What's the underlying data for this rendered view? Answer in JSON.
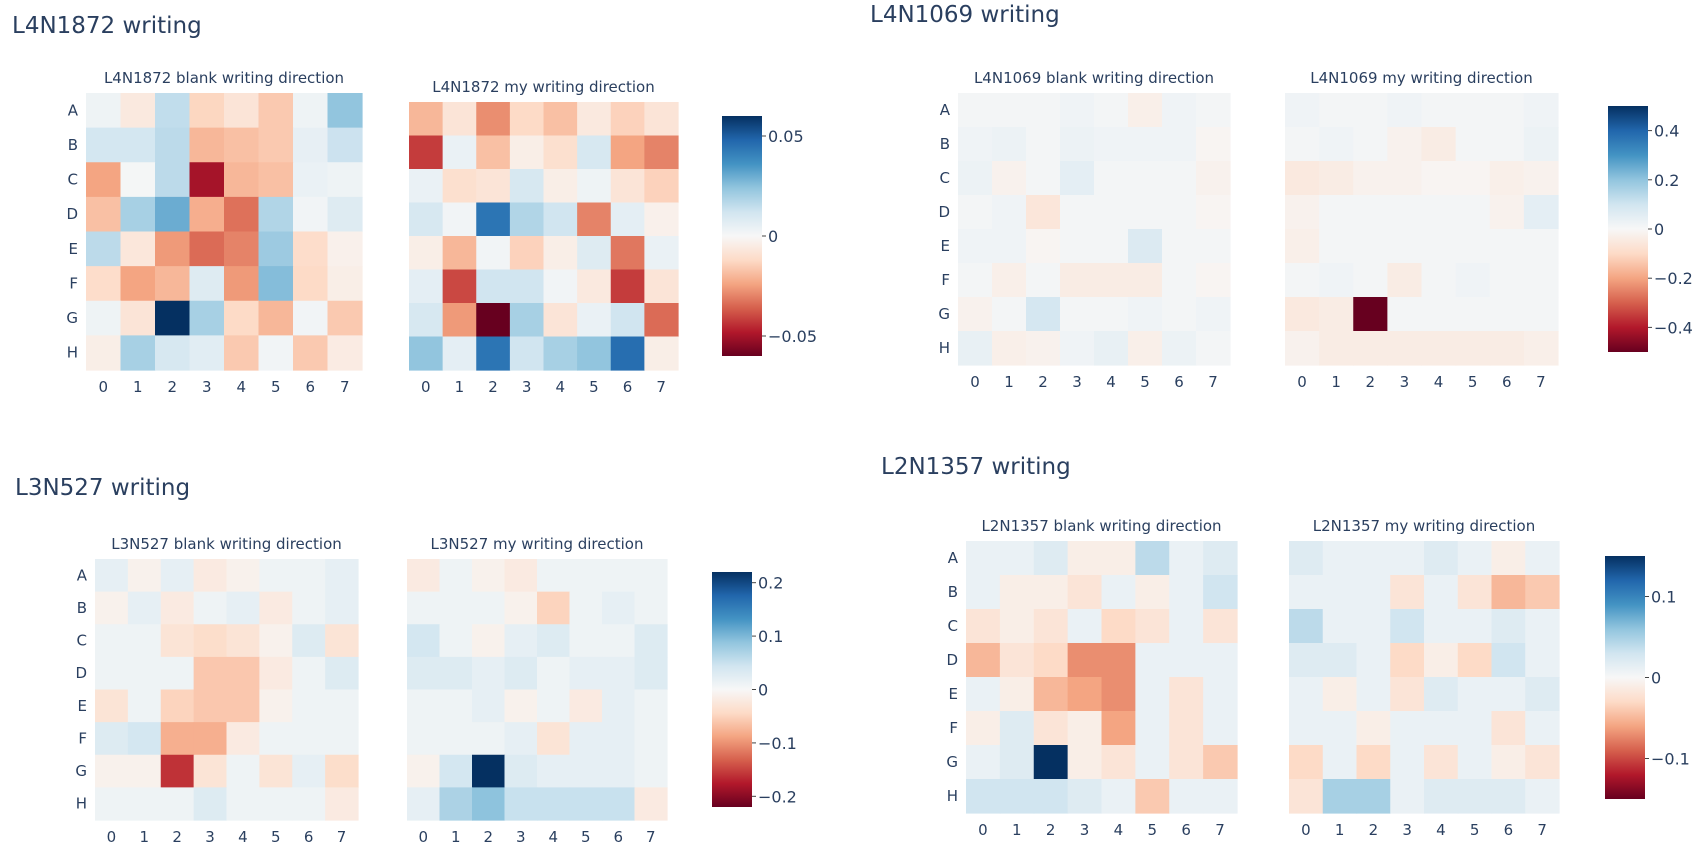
{
  "chart_data": [
    {
      "type": "heatmap",
      "title": "L4N1872 writing",
      "rows": [
        "A",
        "B",
        "C",
        "D",
        "E",
        "F",
        "G",
        "H"
      ],
      "cols": [
        "0",
        "1",
        "2",
        "3",
        "4",
        "5",
        "6",
        "7"
      ],
      "colorbar": {
        "zmin": -0.06,
        "zmax": 0.06,
        "ticks": [
          0.05,
          0,
          -0.05
        ],
        "tick_labels": [
          "0.05",
          "0",
          "−0.05"
        ]
      },
      "panels": [
        {
          "title": "L4N1872 blank writing direction",
          "z": [
            [
              0.003,
              -0.006,
              0.015,
              -0.013,
              -0.008,
              -0.016,
              0.003,
              0.024
            ],
            [
              0.011,
              0.011,
              0.016,
              -0.02,
              -0.018,
              -0.016,
              0.005,
              0.013
            ],
            [
              -0.024,
              0.001,
              0.016,
              -0.05,
              -0.02,
              -0.018,
              0.004,
              0.003
            ],
            [
              -0.018,
              0.02,
              0.03,
              -0.022,
              -0.033,
              0.018,
              0.002,
              0.008
            ],
            [
              0.016,
              -0.007,
              -0.026,
              -0.034,
              -0.03,
              0.022,
              -0.011,
              -0.003
            ],
            [
              -0.011,
              -0.024,
              -0.02,
              0.008,
              -0.026,
              0.026,
              -0.012,
              -0.004
            ],
            [
              0.003,
              -0.008,
              0.06,
              0.02,
              -0.012,
              -0.02,
              0.002,
              -0.016
            ],
            [
              -0.004,
              0.02,
              0.01,
              0.007,
              -0.016,
              0.002,
              -0.016,
              -0.005
            ]
          ]
        },
        {
          "title": "L4N1872 my writing direction",
          "z": [
            [
              -0.02,
              -0.008,
              -0.028,
              -0.012,
              -0.018,
              -0.006,
              -0.014,
              -0.008
            ],
            [
              -0.042,
              0.004,
              -0.018,
              -0.004,
              -0.01,
              0.01,
              -0.024,
              -0.03
            ],
            [
              0.004,
              -0.01,
              -0.008,
              0.01,
              -0.004,
              0.003,
              -0.008,
              -0.014
            ],
            [
              0.01,
              0.002,
              0.044,
              0.018,
              0.012,
              -0.03,
              0.006,
              -0.003
            ],
            [
              -0.004,
              -0.02,
              0.002,
              -0.014,
              -0.004,
              0.008,
              -0.032,
              0.004
            ],
            [
              0.006,
              -0.04,
              0.012,
              0.012,
              0.002,
              -0.006,
              -0.042,
              -0.008
            ],
            [
              0.01,
              -0.026,
              -0.06,
              0.02,
              -0.008,
              0.004,
              0.012,
              -0.034
            ],
            [
              0.024,
              0.006,
              0.044,
              0.012,
              0.02,
              0.024,
              0.046,
              -0.004
            ]
          ]
        }
      ]
    },
    {
      "type": "heatmap",
      "title": "L4N1069 writing",
      "rows": [
        "A",
        "B",
        "C",
        "D",
        "E",
        "F",
        "G",
        "H"
      ],
      "cols": [
        "0",
        "1",
        "2",
        "3",
        "4",
        "5",
        "6",
        "7"
      ],
      "colorbar": {
        "zmin": -0.5,
        "zmax": 0.5,
        "ticks": [
          0.4,
          0.2,
          0,
          -0.2,
          -0.4
        ],
        "tick_labels": [
          "0.4",
          "0.2",
          "0",
          "−0.2",
          "−0.4"
        ]
      },
      "panels": [
        {
          "title": "L4N1069 blank writing direction",
          "z": [
            [
              0.01,
              0.01,
              0.01,
              0.02,
              0.01,
              -0.03,
              0.02,
              0.01
            ],
            [
              0.02,
              0.03,
              0.01,
              0.03,
              0.02,
              0.02,
              0.02,
              -0.01
            ],
            [
              0.03,
              -0.02,
              0.01,
              0.05,
              0.01,
              0.01,
              0.01,
              -0.02
            ],
            [
              0.01,
              0.02,
              -0.06,
              0.01,
              0.01,
              0.01,
              0.01,
              -0.01
            ],
            [
              0.02,
              0.02,
              -0.01,
              0.01,
              0.01,
              0.07,
              0.01,
              0.01
            ],
            [
              0.01,
              -0.03,
              0.01,
              -0.04,
              -0.04,
              -0.04,
              0.01,
              -0.01
            ],
            [
              -0.02,
              0.01,
              0.09,
              0.01,
              0.01,
              0.02,
              0.01,
              0.02
            ],
            [
              0.04,
              -0.03,
              -0.02,
              0.02,
              0.04,
              -0.03,
              0.03,
              0.01
            ]
          ]
        },
        {
          "title": "L4N1069 my writing direction",
          "z": [
            [
              0.02,
              0.01,
              0.01,
              0.02,
              0.01,
              0.01,
              0.01,
              0.02
            ],
            [
              0.01,
              0.02,
              0.01,
              -0.02,
              -0.04,
              0.01,
              0.01,
              0.03
            ],
            [
              -0.05,
              -0.04,
              -0.02,
              -0.02,
              -0.01,
              -0.01,
              -0.03,
              -0.02
            ],
            [
              -0.02,
              0.01,
              0.01,
              0.01,
              0.01,
              0.01,
              -0.02,
              0.05
            ],
            [
              -0.03,
              0.01,
              0.01,
              0.01,
              0.01,
              0.01,
              0.01,
              0.01
            ],
            [
              0.01,
              0.02,
              0.01,
              -0.04,
              0.01,
              0.02,
              0.01,
              0.01
            ],
            [
              -0.05,
              -0.04,
              -0.5,
              0.01,
              0.01,
              0.01,
              0.01,
              0.01
            ],
            [
              -0.02,
              -0.04,
              -0.04,
              -0.04,
              -0.04,
              -0.04,
              -0.04,
              -0.03
            ]
          ]
        }
      ]
    },
    {
      "type": "heatmap",
      "title": "L3N527 writing",
      "rows": [
        "A",
        "B",
        "C",
        "D",
        "E",
        "F",
        "G",
        "H"
      ],
      "cols": [
        "0",
        "1",
        "2",
        "3",
        "4",
        "5",
        "6",
        "7"
      ],
      "colorbar": {
        "zmin": -0.22,
        "zmax": 0.22,
        "ticks": [
          0.2,
          0.1,
          0,
          -0.1,
          -0.2
        ],
        "tick_labels": [
          "0.2",
          "0.1",
          "0",
          "−0.1",
          "−0.2"
        ]
      },
      "panels": [
        {
          "title": "L3N527 blank writing direction",
          "z": [
            [
              0.02,
              -0.01,
              0.02,
              -0.02,
              -0.01,
              0.01,
              0.01,
              0.02
            ],
            [
              -0.01,
              0.02,
              -0.02,
              0.01,
              0.02,
              -0.02,
              0.01,
              0.02
            ],
            [
              0.01,
              0.01,
              -0.03,
              -0.04,
              -0.03,
              -0.01,
              0.03,
              -0.03
            ],
            [
              0.01,
              0.01,
              0.01,
              -0.06,
              -0.06,
              -0.02,
              0.01,
              0.03
            ],
            [
              -0.03,
              0.01,
              -0.05,
              -0.06,
              -0.06,
              -0.01,
              0.01,
              0.01
            ],
            [
              0.03,
              0.04,
              -0.08,
              -0.08,
              -0.02,
              0.01,
              0.01,
              0.01
            ],
            [
              -0.01,
              -0.01,
              -0.16,
              -0.03,
              0.01,
              -0.03,
              0.02,
              -0.04
            ],
            [
              0.01,
              0.01,
              0.01,
              0.03,
              0.01,
              0.01,
              0.01,
              -0.02
            ]
          ]
        },
        {
          "title": "L3N527 my writing direction",
          "z": [
            [
              -0.02,
              0.01,
              -0.01,
              -0.02,
              0.01,
              0.01,
              0.01,
              0.01
            ],
            [
              0.01,
              0.01,
              0.01,
              -0.01,
              -0.05,
              0.01,
              0.02,
              0.01
            ],
            [
              0.04,
              0.01,
              -0.01,
              0.02,
              0.03,
              0.01,
              0.01,
              0.03
            ],
            [
              0.03,
              0.03,
              0.02,
              0.03,
              0.01,
              0.02,
              0.02,
              0.03
            ],
            [
              0.01,
              0.01,
              0.02,
              -0.01,
              0.01,
              -0.02,
              0.02,
              0.01
            ],
            [
              0.01,
              0.01,
              0.01,
              0.02,
              -0.03,
              0.02,
              0.02,
              0.01
            ],
            [
              -0.01,
              0.04,
              0.22,
              0.03,
              0.02,
              0.02,
              0.02,
              0.01
            ],
            [
              0.02,
              0.07,
              0.09,
              0.05,
              0.05,
              0.05,
              0.05,
              -0.02
            ]
          ]
        }
      ]
    },
    {
      "type": "heatmap",
      "title": "L2N1357 writing",
      "rows": [
        "A",
        "B",
        "C",
        "D",
        "E",
        "F",
        "G",
        "H"
      ],
      "cols": [
        "0",
        "1",
        "2",
        "3",
        "4",
        "5",
        "6",
        "7"
      ],
      "colorbar": {
        "zmin": -0.15,
        "zmax": 0.15,
        "ticks": [
          0.1,
          0,
          -0.1
        ],
        "tick_labels": [
          "0.1",
          "0",
          "−0.1"
        ]
      },
      "panels": [
        {
          "title": "L2N1357 blank writing direction",
          "z": [
            [
              0.01,
              0.01,
              0.02,
              -0.01,
              -0.01,
              0.04,
              0.01,
              0.02
            ],
            [
              0.01,
              -0.01,
              -0.01,
              -0.02,
              0.01,
              -0.01,
              0.01,
              0.03
            ],
            [
              -0.02,
              -0.01,
              -0.02,
              0.01,
              -0.03,
              -0.02,
              0.01,
              -0.02
            ],
            [
              -0.05,
              -0.02,
              -0.03,
              -0.07,
              -0.07,
              0.01,
              0.01,
              0.01
            ],
            [
              0.01,
              -0.01,
              -0.05,
              -0.06,
              -0.07,
              0.01,
              -0.02,
              0.01
            ],
            [
              -0.01,
              0.02,
              -0.02,
              -0.01,
              -0.06,
              0.01,
              -0.02,
              0.01
            ],
            [
              0.01,
              0.02,
              0.15,
              -0.01,
              -0.02,
              0.01,
              -0.02,
              -0.04
            ],
            [
              0.03,
              0.03,
              0.03,
              0.02,
              0.01,
              -0.04,
              0.01,
              0.01
            ]
          ]
        },
        {
          "title": "L2N1357 my writing direction",
          "z": [
            [
              0.02,
              0.01,
              0.01,
              0.01,
              0.02,
              0.01,
              -0.01,
              0.01
            ],
            [
              0.01,
              0.01,
              0.01,
              -0.02,
              0.01,
              -0.02,
              -0.05,
              -0.04
            ],
            [
              0.04,
              0.01,
              0.01,
              0.03,
              0.01,
              0.01,
              0.02,
              0.01
            ],
            [
              0.02,
              0.02,
              0.01,
              -0.03,
              -0.01,
              -0.03,
              0.03,
              0.01
            ],
            [
              0.01,
              -0.01,
              0.01,
              -0.02,
              0.02,
              0.01,
              0.01,
              0.02
            ],
            [
              0.01,
              0.01,
              -0.01,
              0.01,
              0.01,
              0.01,
              -0.02,
              0.01
            ],
            [
              -0.03,
              0.01,
              -0.03,
              0.01,
              -0.02,
              0.01,
              -0.01,
              -0.02
            ],
            [
              -0.02,
              0.05,
              0.05,
              0.01,
              0.02,
              0.02,
              0.02,
              0.01
            ]
          ]
        }
      ]
    }
  ]
}
